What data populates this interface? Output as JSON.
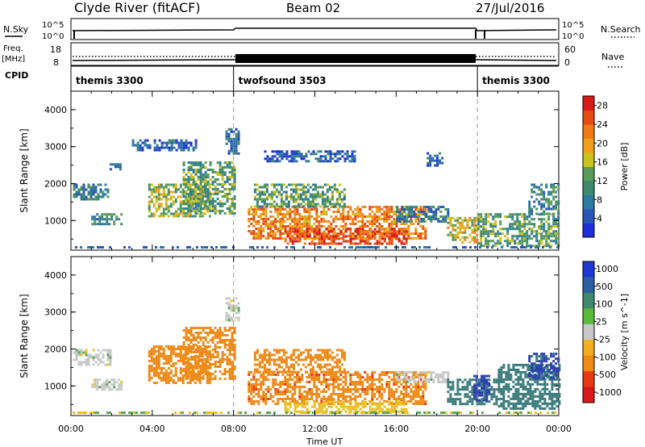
{
  "header": {
    "station": "Clyde River (fitACF)",
    "beam": "Beam 02",
    "date": "27/Jul/2016"
  },
  "strip_labels": {
    "nsky": "N.Sky",
    "nsky_top": "10^5",
    "nsky_bottom": "10^0",
    "nsearch": "N.Search",
    "nsearch_top": "10^5",
    "nsearch_bottom": "10^0",
    "freq": "Freq.",
    "freq_unit": "[MHz]",
    "freq_ticks": [
      "18",
      "8"
    ],
    "nave": "Nave",
    "nave_ticks": [
      "60",
      "0"
    ],
    "cpid": "CPID"
  },
  "cpid_segments": [
    {
      "label": "themis 3300",
      "start": 0,
      "end": 8
    },
    {
      "label": "twofsound 3503",
      "start": 8,
      "end": 20
    },
    {
      "label": "themis 3300",
      "start": 20,
      "end": 24
    }
  ],
  "chart_data": [
    {
      "type": "heatmap",
      "title": "Power",
      "ylabel": "Slant Range [km]",
      "xlabel": "Time UT",
      "xlim": [
        0,
        24
      ],
      "ylim": [
        200,
        4500
      ],
      "x_ticks": [
        "00:00",
        "04:00",
        "08:00",
        "12:00",
        "16:00",
        "20:00",
        "00:00"
      ],
      "y_ticks": [
        "1000",
        "2000",
        "3000",
        "4000"
      ],
      "colorbar": {
        "label": "Power [dB]",
        "ticks": [
          "4",
          "8",
          "12",
          "16",
          "20",
          "24",
          "28"
        ],
        "range": [
          0,
          30
        ]
      },
      "regions": [
        {
          "t0": 0.1,
          "t1": 1.8,
          "r0": 1600,
          "r1": 2000,
          "value": 8
        },
        {
          "t0": 1.0,
          "t1": 2.5,
          "r0": 900,
          "r1": 1200,
          "value": 10
        },
        {
          "t0": 1.9,
          "t1": 2.4,
          "r0": 2400,
          "r1": 2550,
          "value": 6
        },
        {
          "t0": 3.0,
          "t1": 6.2,
          "r0": 2900,
          "r1": 3200,
          "value": 6
        },
        {
          "t0": 3.8,
          "t1": 6.8,
          "r0": 1100,
          "r1": 2000,
          "value": 15
        },
        {
          "t0": 5.5,
          "t1": 8.0,
          "r0": 1200,
          "r1": 2600,
          "value": 12
        },
        {
          "t0": 7.6,
          "t1": 8.3,
          "r0": 2800,
          "r1": 3500,
          "value": 7
        },
        {
          "t0": 9.5,
          "t1": 14.0,
          "r0": 2600,
          "r1": 2900,
          "value": 5
        },
        {
          "t0": 8.7,
          "t1": 17.5,
          "r0": 500,
          "r1": 1400,
          "value": 22
        },
        {
          "t0": 10.5,
          "t1": 16.5,
          "r0": 400,
          "r1": 800,
          "value": 26
        },
        {
          "t0": 9.0,
          "t1": 13.5,
          "r0": 1400,
          "r1": 2000,
          "value": 12
        },
        {
          "t0": 16.0,
          "t1": 18.5,
          "r0": 1000,
          "r1": 1400,
          "value": 8
        },
        {
          "t0": 17.5,
          "t1": 18.3,
          "r0": 2500,
          "r1": 2850,
          "value": 6
        },
        {
          "t0": 18.5,
          "t1": 20.0,
          "r0": 400,
          "r1": 1100,
          "value": 18
        },
        {
          "t0": 20.0,
          "t1": 24.0,
          "r0": 300,
          "r1": 1200,
          "value": 12
        },
        {
          "t0": 22.5,
          "t1": 24.0,
          "r0": 1200,
          "r1": 2000,
          "value": 10
        }
      ]
    },
    {
      "type": "heatmap",
      "title": "Velocity",
      "ylabel": "Slant Range [km]",
      "xlabel": "Time UT",
      "xlim": [
        0,
        24
      ],
      "ylim": [
        200,
        4500
      ],
      "x_ticks": [
        "00:00",
        "04:00",
        "08:00",
        "12:00",
        "16:00",
        "20:00",
        "00:00"
      ],
      "y_ticks": [
        "1000",
        "2000",
        "3000",
        "4000"
      ],
      "colorbar": {
        "label": "Velocity [m s^-1]",
        "ticks": [
          "1000",
          "500",
          "100",
          "25",
          "-25",
          "-100",
          "-500",
          "-1000"
        ]
      },
      "regions": [
        {
          "t0": 0.1,
          "t1": 2.0,
          "r0": 1600,
          "r1": 2000,
          "value": 0
        },
        {
          "t0": 1.0,
          "t1": 2.5,
          "r0": 900,
          "r1": 1200,
          "value": 0
        },
        {
          "t0": 3.8,
          "t1": 6.8,
          "r0": 1100,
          "r1": 2100,
          "value": -300
        },
        {
          "t0": 5.5,
          "t1": 8.0,
          "r0": 1200,
          "r1": 2600,
          "value": -150
        },
        {
          "t0": 7.6,
          "t1": 8.3,
          "r0": 2800,
          "r1": 3400,
          "value": 0
        },
        {
          "t0": 8.7,
          "t1": 17.5,
          "r0": 500,
          "r1": 1400,
          "value": -400
        },
        {
          "t0": 10.5,
          "t1": 16.5,
          "r0": 300,
          "r1": 600,
          "value": -60
        },
        {
          "t0": 9.0,
          "t1": 13.5,
          "r0": 1400,
          "r1": 2000,
          "value": -150
        },
        {
          "t0": 16.0,
          "t1": 18.5,
          "r0": 1100,
          "r1": 1400,
          "value": 0
        },
        {
          "t0": 18.5,
          "t1": 21.0,
          "r0": 500,
          "r1": 1200,
          "value": 150
        },
        {
          "t0": 19.8,
          "t1": 20.6,
          "r0": 600,
          "r1": 1300,
          "value": 700
        },
        {
          "t0": 21.0,
          "t1": 24.0,
          "r0": 400,
          "r1": 1600,
          "value": 250
        },
        {
          "t0": 22.5,
          "t1": 24.0,
          "r0": 1200,
          "r1": 1900,
          "value": 600
        }
      ]
    }
  ]
}
